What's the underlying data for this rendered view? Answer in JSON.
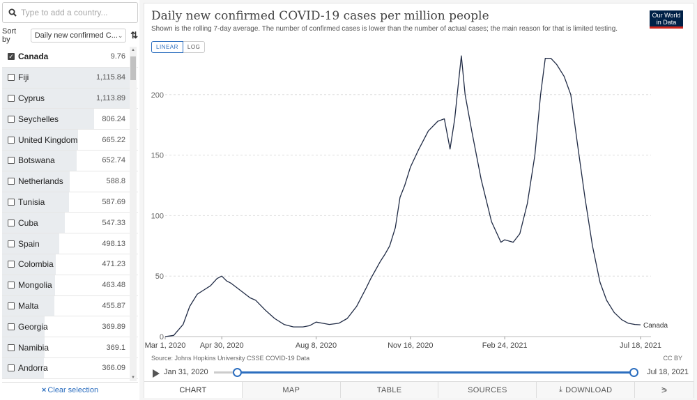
{
  "sidebar": {
    "search_placeholder": "Type to add a country...",
    "sort_label": "Sort by",
    "sort_value": "Daily new confirmed C...",
    "clear_label": "Clear selection",
    "countries": [
      {
        "name": "Canada",
        "value": "9.76",
        "checked": true,
        "bar": 0.0
      },
      {
        "name": "Fiji",
        "value": "1,115.84",
        "checked": false,
        "bar": 1.0
      },
      {
        "name": "Cyprus",
        "value": "1,113.89",
        "checked": false,
        "bar": 0.998
      },
      {
        "name": "Seychelles",
        "value": "806.24",
        "checked": false,
        "bar": 0.722
      },
      {
        "name": "United Kingdom",
        "value": "665.22",
        "checked": false,
        "bar": 0.596
      },
      {
        "name": "Botswana",
        "value": "652.74",
        "checked": false,
        "bar": 0.585
      },
      {
        "name": "Netherlands",
        "value": "588.8",
        "checked": false,
        "bar": 0.528
      },
      {
        "name": "Tunisia",
        "value": "587.69",
        "checked": false,
        "bar": 0.527
      },
      {
        "name": "Cuba",
        "value": "547.33",
        "checked": false,
        "bar": 0.49
      },
      {
        "name": "Spain",
        "value": "498.13",
        "checked": false,
        "bar": 0.446
      },
      {
        "name": "Colombia",
        "value": "471.23",
        "checked": false,
        "bar": 0.422
      },
      {
        "name": "Mongolia",
        "value": "463.48",
        "checked": false,
        "bar": 0.415
      },
      {
        "name": "Malta",
        "value": "455.87",
        "checked": false,
        "bar": 0.409
      },
      {
        "name": "Georgia",
        "value": "369.89",
        "checked": false,
        "bar": 0.331
      },
      {
        "name": "Namibia",
        "value": "369.1",
        "checked": false,
        "bar": 0.331
      },
      {
        "name": "Andorra",
        "value": "366.09",
        "checked": false,
        "bar": 0.328
      }
    ]
  },
  "header": {
    "title": "Daily new confirmed COVID-19 cases per million people",
    "subtitle": "Shown is the rolling 7-day average. The number of confirmed cases is lower than the number of actual cases; the main reason for that is limited testing.",
    "logo_line1": "Our World",
    "logo_line2": "in Data",
    "toggle_linear": "LINEAR",
    "toggle_log": "LOG"
  },
  "footer": {
    "source": "Source: Johns Hopkins University CSSE COVID-19 Data",
    "license": "CC BY",
    "timeline_start": "Jan 31, 2020",
    "timeline_end": "Jul 18, 2021",
    "tabs": [
      "CHART",
      "MAP",
      "TABLE",
      "SOURCES",
      "DOWNLOAD"
    ]
  },
  "chart_data": {
    "type": "line",
    "title": "Daily new confirmed COVID-19 cases per million people",
    "x_ticks": [
      "Mar 1, 2020",
      "Apr 30, 2020",
      "Aug 8, 2020",
      "Nov 16, 2020",
      "Feb 24, 2021",
      "Jul 18, 2021"
    ],
    "y_ticks": [
      "0",
      "50",
      "100",
      "150",
      "200"
    ],
    "ylim": [
      0,
      235
    ],
    "grid": "horizontal dashed",
    "series": [
      {
        "name": "Canada",
        "color": "#1f2a44",
        "points": [
          [
            "2020-03-01",
            0
          ],
          [
            "2020-03-10",
            1
          ],
          [
            "2020-03-20",
            10
          ],
          [
            "2020-03-27",
            25
          ],
          [
            "2020-04-04",
            35
          ],
          [
            "2020-04-10",
            38
          ],
          [
            "2020-04-18",
            42
          ],
          [
            "2020-04-25",
            48
          ],
          [
            "2020-04-30",
            50
          ],
          [
            "2020-05-05",
            46
          ],
          [
            "2020-05-10",
            44
          ],
          [
            "2020-05-20",
            38
          ],
          [
            "2020-05-30",
            32
          ],
          [
            "2020-06-05",
            30
          ],
          [
            "2020-06-15",
            22
          ],
          [
            "2020-06-25",
            15
          ],
          [
            "2020-07-05",
            10
          ],
          [
            "2020-07-15",
            8
          ],
          [
            "2020-07-25",
            8
          ],
          [
            "2020-08-01",
            9
          ],
          [
            "2020-08-08",
            12
          ],
          [
            "2020-08-15",
            11
          ],
          [
            "2020-08-22",
            10
          ],
          [
            "2020-09-01",
            11
          ],
          [
            "2020-09-10",
            15
          ],
          [
            "2020-09-20",
            25
          ],
          [
            "2020-09-30",
            40
          ],
          [
            "2020-10-05",
            48
          ],
          [
            "2020-10-10",
            55
          ],
          [
            "2020-10-15",
            62
          ],
          [
            "2020-10-20",
            68
          ],
          [
            "2020-10-25",
            75
          ],
          [
            "2020-10-31",
            90
          ],
          [
            "2020-11-05",
            115
          ],
          [
            "2020-11-10",
            125
          ],
          [
            "2020-11-16",
            140
          ],
          [
            "2020-11-25",
            155
          ],
          [
            "2020-12-05",
            170
          ],
          [
            "2020-12-15",
            178
          ],
          [
            "2020-12-22",
            180
          ],
          [
            "2020-12-28",
            155
          ],
          [
            "2021-01-02",
            180
          ],
          [
            "2021-01-06",
            210
          ],
          [
            "2021-01-09",
            232
          ],
          [
            "2021-01-13",
            200
          ],
          [
            "2021-01-20",
            170
          ],
          [
            "2021-01-30",
            130
          ],
          [
            "2021-02-10",
            95
          ],
          [
            "2021-02-20",
            78
          ],
          [
            "2021-02-24",
            80
          ],
          [
            "2021-03-05",
            78
          ],
          [
            "2021-03-12",
            85
          ],
          [
            "2021-03-20",
            110
          ],
          [
            "2021-03-28",
            150
          ],
          [
            "2021-04-03",
            200
          ],
          [
            "2021-04-08",
            230
          ],
          [
            "2021-04-14",
            230
          ],
          [
            "2021-04-20",
            225
          ],
          [
            "2021-04-28",
            215
          ],
          [
            "2021-05-05",
            200
          ],
          [
            "2021-05-12",
            160
          ],
          [
            "2021-05-20",
            115
          ],
          [
            "2021-05-28",
            75
          ],
          [
            "2021-06-05",
            45
          ],
          [
            "2021-06-12",
            30
          ],
          [
            "2021-06-20",
            20
          ],
          [
            "2021-06-28",
            14
          ],
          [
            "2021-07-05",
            11
          ],
          [
            "2021-07-12",
            10
          ],
          [
            "2021-07-18",
            9.76
          ]
        ]
      }
    ]
  }
}
